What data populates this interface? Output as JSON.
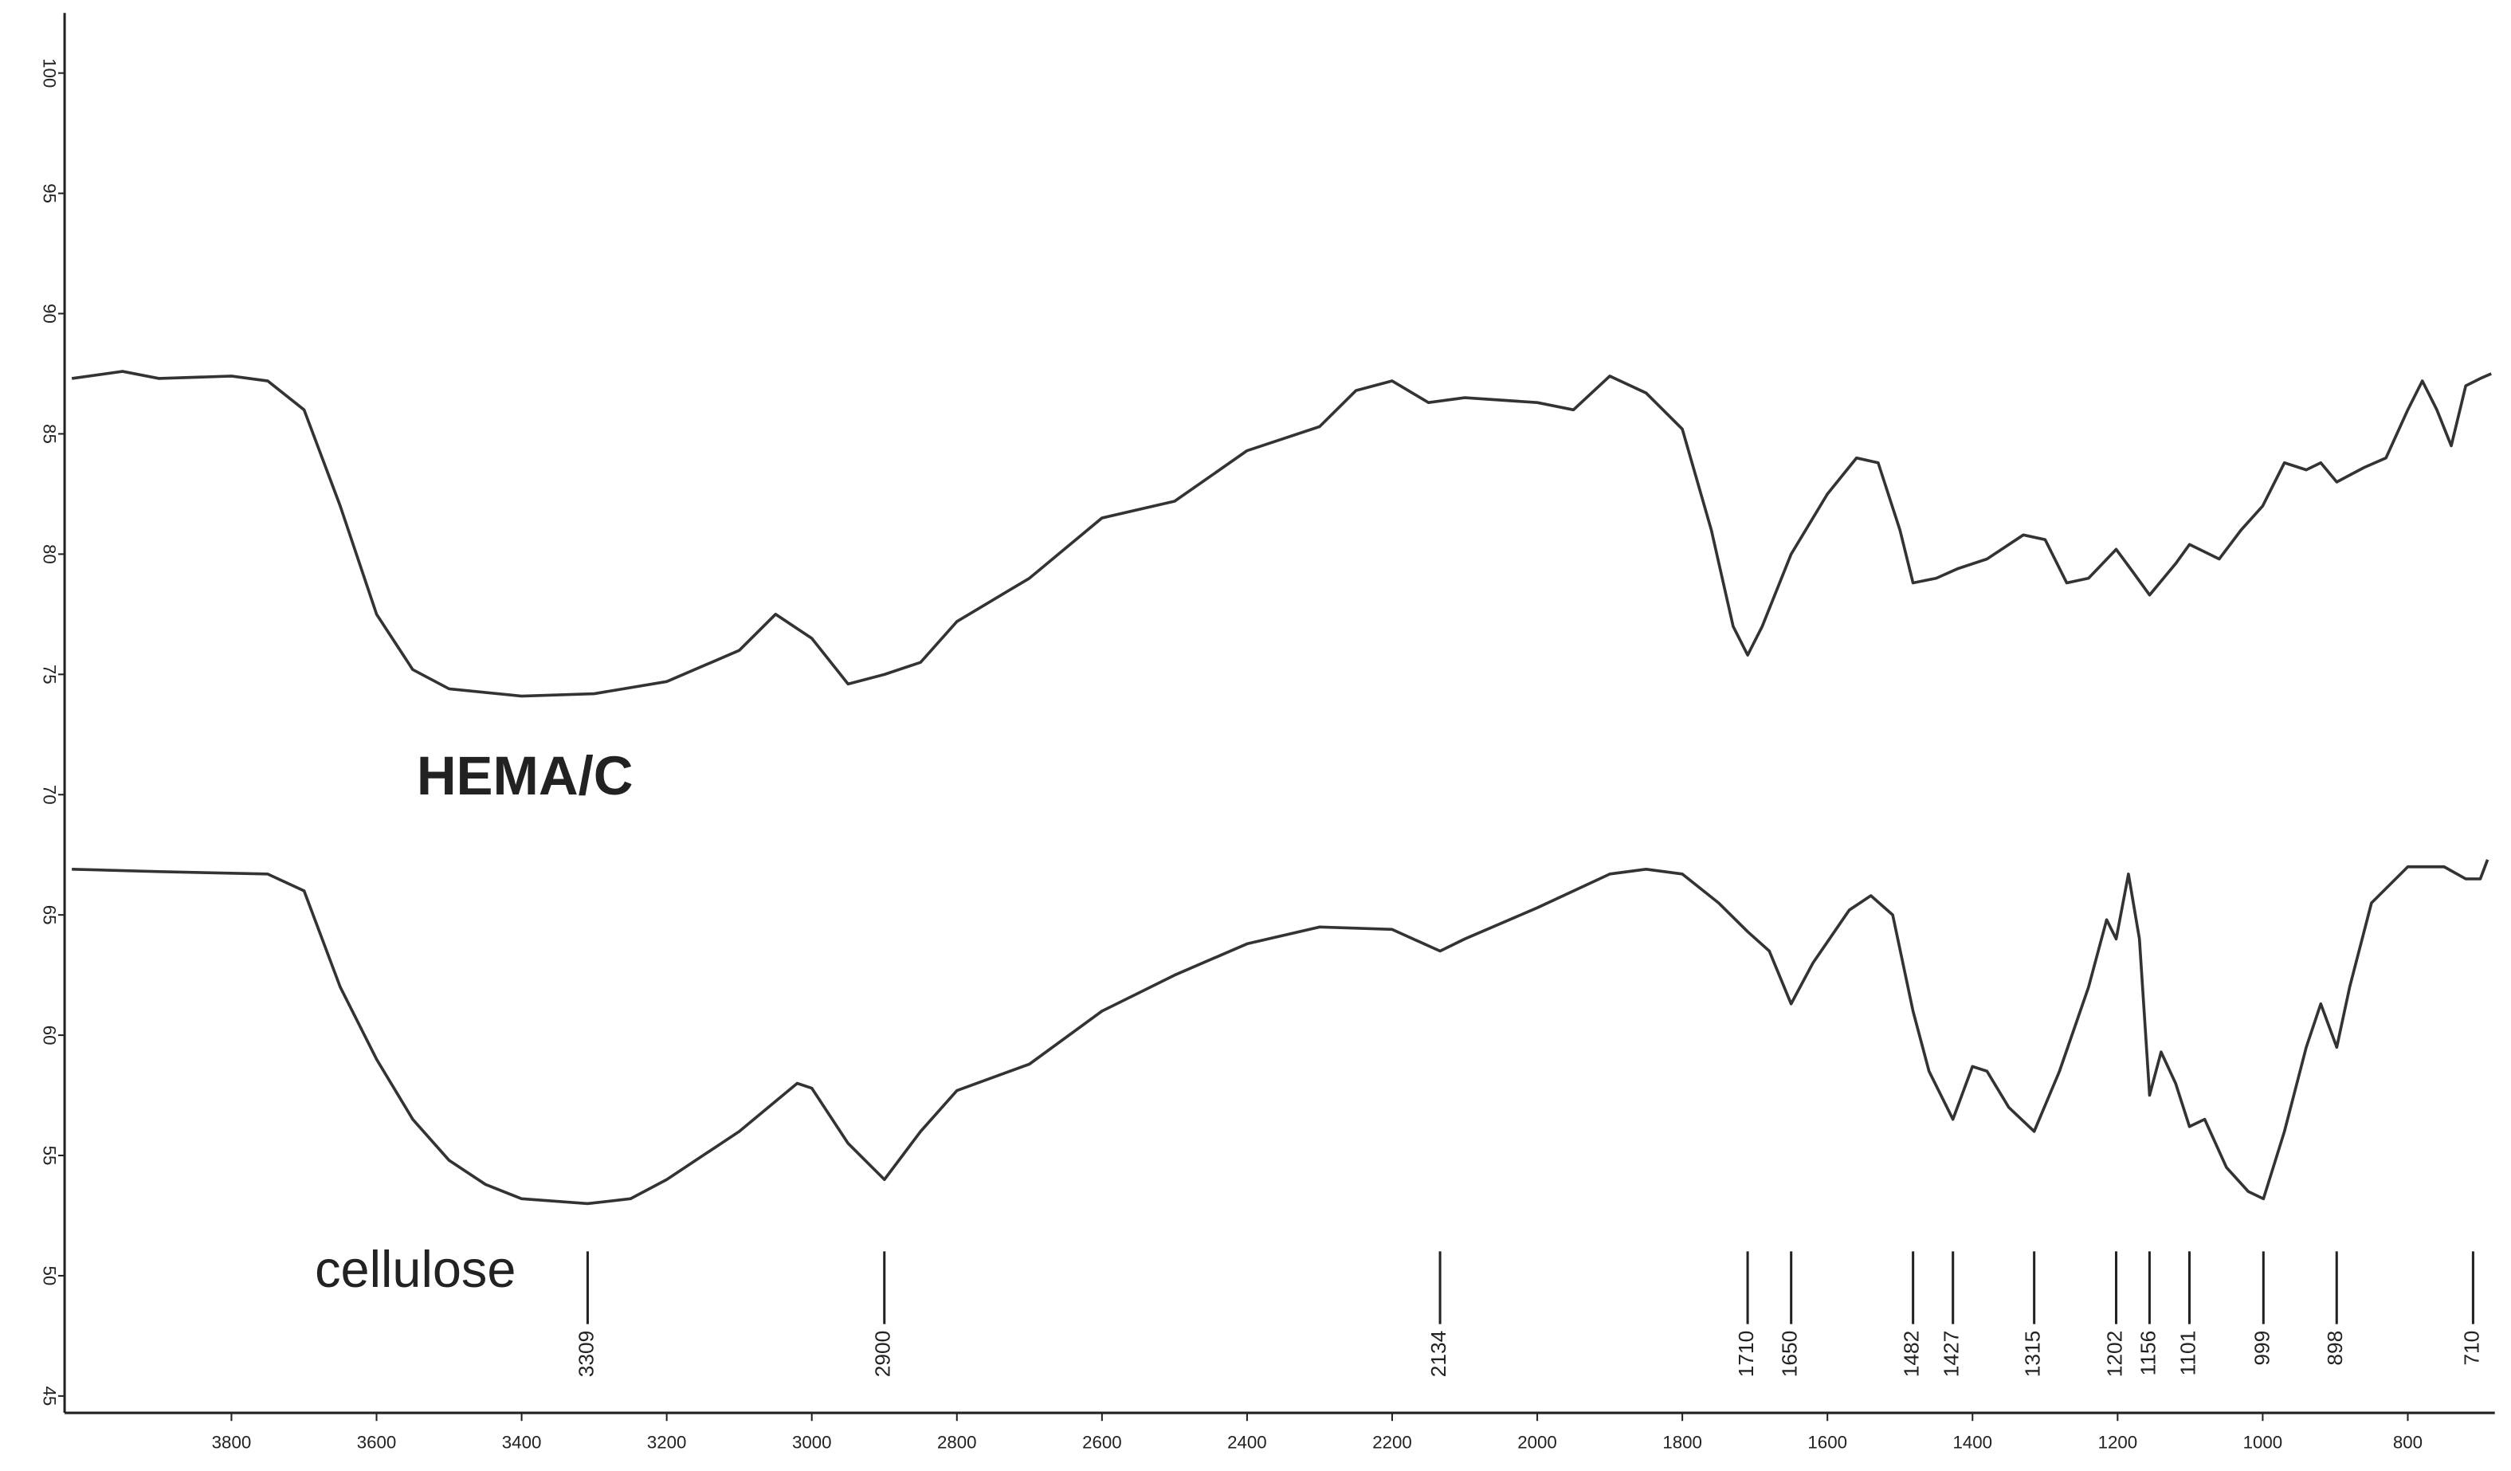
{
  "chart_data": {
    "type": "line",
    "xlim": [
      4030,
      680
    ],
    "ylim": [
      44.5,
      102.5
    ],
    "xticks": [
      3800,
      3600,
      3400,
      3200,
      3000,
      2800,
      2600,
      2400,
      2200,
      2000,
      1800,
      1600,
      1400,
      1200,
      1000,
      800
    ],
    "yticks": [
      45,
      50,
      55,
      60,
      65,
      70,
      75,
      80,
      85,
      90,
      95,
      100
    ],
    "series": [
      {
        "name": "HEMA/C",
        "color": "#333333",
        "x": [
          4020,
          3950,
          3900,
          3800,
          3750,
          3700,
          3650,
          3600,
          3550,
          3500,
          3400,
          3300,
          3200,
          3100,
          3050,
          3000,
          2950,
          2900,
          2850,
          2800,
          2700,
          2600,
          2500,
          2400,
          2300,
          2250,
          2200,
          2150,
          2100,
          2000,
          1950,
          1900,
          1850,
          1800,
          1760,
          1730,
          1710,
          1690,
          1650,
          1600,
          1560,
          1530,
          1500,
          1482,
          1450,
          1420,
          1380,
          1330,
          1300,
          1270,
          1240,
          1202,
          1180,
          1156,
          1120,
          1101,
          1060,
          1030,
          1000,
          970,
          940,
          920,
          898,
          860,
          830,
          800,
          780,
          760,
          740,
          720,
          700,
          685
        ],
        "values": [
          87.3,
          87.6,
          87.3,
          87.4,
          87.2,
          86.0,
          82.0,
          77.5,
          75.2,
          74.4,
          74.1,
          74.2,
          74.7,
          76.0,
          77.5,
          76.5,
          74.6,
          75.0,
          75.5,
          77.2,
          79.0,
          81.5,
          82.2,
          84.3,
          85.3,
          86.8,
          87.2,
          86.3,
          86.5,
          86.3,
          86.0,
          87.4,
          86.7,
          85.2,
          81.0,
          77.0,
          75.8,
          77.0,
          80.0,
          82.5,
          84.0,
          83.8,
          81.0,
          78.8,
          79.0,
          79.4,
          79.8,
          80.8,
          80.6,
          78.8,
          79.0,
          80.2,
          79.3,
          78.3,
          79.6,
          80.4,
          79.8,
          81.0,
          82.0,
          83.8,
          83.5,
          83.8,
          83.0,
          83.6,
          84.0,
          86.0,
          87.2,
          86.0,
          84.5,
          87.0,
          87.3,
          87.5
        ]
      },
      {
        "name": "cellulose",
        "color": "#333333",
        "x": [
          4020,
          3900,
          3750,
          3700,
          3650,
          3600,
          3550,
          3500,
          3450,
          3400,
          3309,
          3250,
          3200,
          3100,
          3020,
          3000,
          2950,
          2900,
          2850,
          2800,
          2700,
          2600,
          2500,
          2400,
          2300,
          2200,
          2134,
          2100,
          2000,
          1900,
          1850,
          1800,
          1750,
          1710,
          1680,
          1650,
          1620,
          1570,
          1540,
          1510,
          1482,
          1460,
          1427,
          1400,
          1380,
          1350,
          1315,
          1280,
          1240,
          1215,
          1202,
          1185,
          1170,
          1156,
          1140,
          1120,
          1101,
          1080,
          1050,
          1020,
          999,
          970,
          940,
          920,
          898,
          880,
          850,
          800,
          750,
          720,
          700,
          690
        ],
        "values": [
          66.9,
          66.8,
          66.7,
          66.0,
          62.0,
          59.0,
          56.5,
          54.8,
          53.8,
          53.2,
          53.0,
          53.2,
          54.0,
          56.0,
          58.0,
          57.8,
          55.5,
          54.0,
          56.0,
          57.7,
          58.8,
          61.0,
          62.5,
          63.8,
          64.5,
          64.4,
          63.5,
          64.0,
          65.3,
          66.7,
          66.9,
          66.7,
          65.5,
          64.3,
          63.5,
          61.3,
          63.0,
          65.2,
          65.8,
          65.0,
          61.0,
          58.5,
          56.5,
          58.7,
          58.5,
          57.0,
          56.0,
          58.5,
          62.0,
          64.8,
          64.0,
          66.7,
          64.0,
          57.5,
          59.3,
          58.0,
          56.2,
          56.5,
          54.5,
          53.5,
          53.2,
          56.0,
          59.5,
          61.3,
          59.5,
          62.0,
          65.5,
          67.0,
          67.0,
          66.5,
          66.5,
          67.3
        ]
      }
    ],
    "peak_labels": [
      3309,
      2900,
      2134,
      1710,
      1650,
      1482,
      1427,
      1315,
      1202,
      1156,
      1101,
      999,
      898,
      710
    ]
  }
}
